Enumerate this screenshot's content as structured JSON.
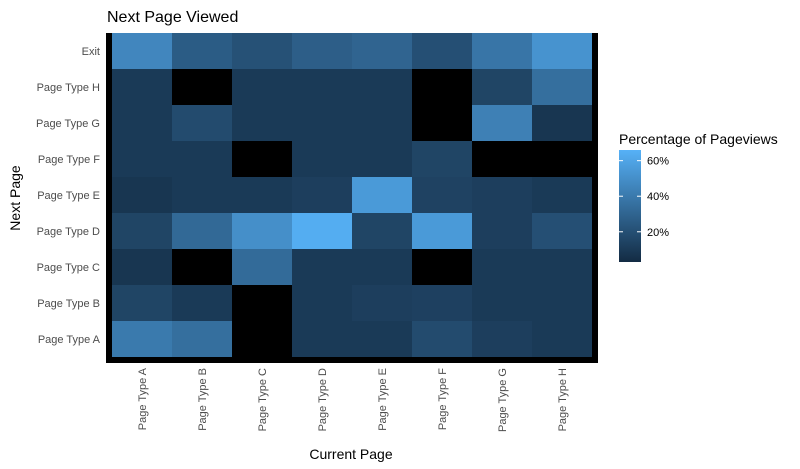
{
  "chart_data": {
    "type": "heatmap",
    "title": "Next Page Viewed",
    "xlabel": "Current Page",
    "ylabel": "Next Page",
    "x_categories": [
      "Page Type A",
      "Page Type B",
      "Page Type C",
      "Page Type D",
      "Page Type E",
      "Page Type F",
      "Page Type G",
      "Page Type H"
    ],
    "y_categories": [
      "Page Type A",
      "Page Type B",
      "Page Type C",
      "Page Type D",
      "Page Type E",
      "Page Type F",
      "Page Type G",
      "Page Type H",
      "Exit"
    ],
    "values": [
      [
        40,
        35,
        null,
        10,
        10,
        18,
        12,
        10
      ],
      [
        15,
        10,
        null,
        10,
        12,
        13,
        10,
        10
      ],
      [
        8,
        null,
        33,
        10,
        10,
        null,
        10,
        10
      ],
      [
        15,
        32,
        50,
        64,
        15,
        55,
        12,
        20
      ],
      [
        8,
        10,
        10,
        12,
        55,
        14,
        12,
        10
      ],
      [
        10,
        10,
        null,
        10,
        10,
        15,
        null,
        null
      ],
      [
        10,
        18,
        10,
        10,
        10,
        null,
        43,
        8
      ],
      [
        10,
        null,
        10,
        10,
        10,
        null,
        15,
        35
      ],
      [
        46,
        26,
        21,
        27,
        30,
        20,
        38,
        52
      ]
    ],
    "missing_color": "#000000",
    "color_scale": {
      "low": "#132B43",
      "high": "#56B1F7",
      "min": 3,
      "max": 66
    },
    "legend": {
      "title": "Percentage of Pageviews",
      "ticks": [
        {
          "value": 20,
          "label": "20%"
        },
        {
          "value": 40,
          "label": "40%"
        },
        {
          "value": 60,
          "label": "60%"
        }
      ],
      "placement": "right"
    },
    "grid": false
  }
}
